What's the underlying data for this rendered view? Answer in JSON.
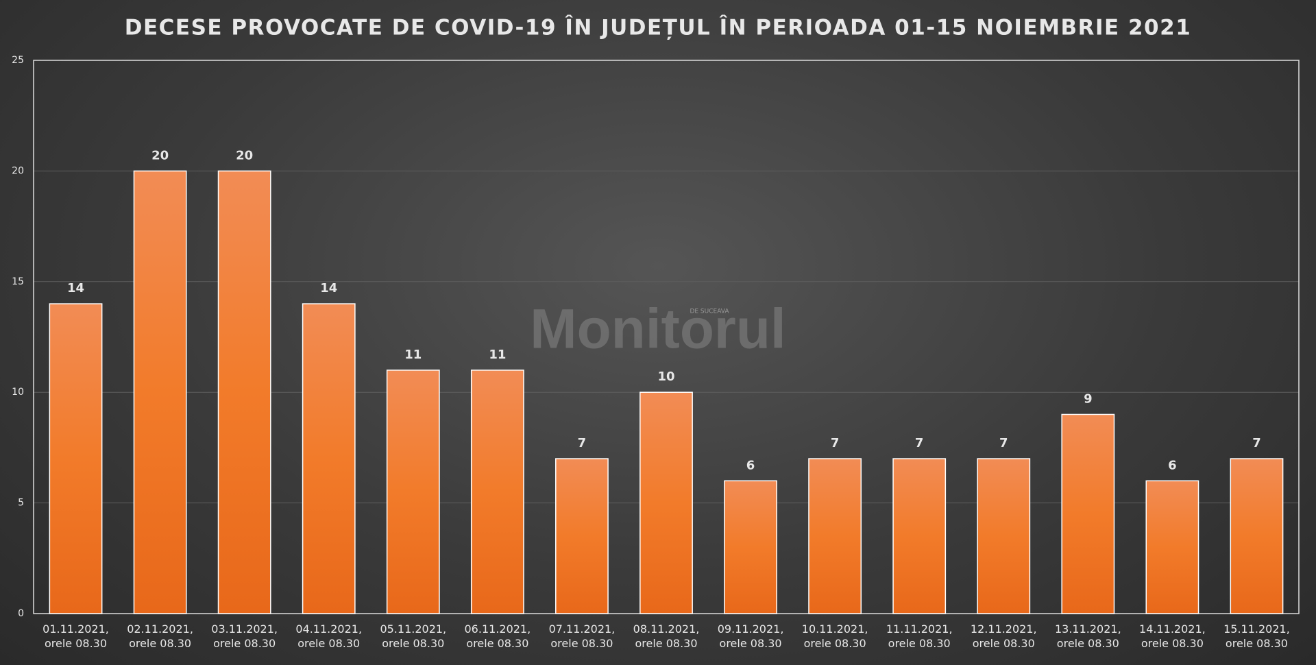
{
  "chart_data": {
    "type": "bar",
    "title": "DECESE PROVOCATE DE COVID-19 ÎN JUDEȚUL ÎN PERIOADA 01-15 NOIEMBRIE 2021",
    "watermark": "Monitorul",
    "watermark_subtitle": "DE SUCEAVA",
    "categories": [
      "01.11.2021, orele 08.30",
      "02.11.2021, orele 08.30",
      "03.11.2021, orele 08.30",
      "04.11.2021, orele 08.30",
      "05.11.2021, orele 08.30",
      "06.11.2021, orele 08.30",
      "07.11.2021, orele 08.30",
      "08.11.2021, orele 08.30",
      "09.11.2021, orele 08.30",
      "10.11.2021, orele 08.30",
      "11.11.2021, orele 08.30",
      "12.11.2021, orele 08.30",
      "13.11.2021, orele 08.30",
      "14.11.2021, orele 08.30",
      "15.11.2021, orele 08.30"
    ],
    "values": [
      14,
      20,
      20,
      14,
      11,
      11,
      7,
      10,
      6,
      7,
      7,
      7,
      9,
      6,
      7
    ],
    "color": "#f07a2a",
    "ylim": [
      0,
      25
    ],
    "yticks": [
      0,
      5,
      10,
      15,
      20,
      25
    ],
    "grid": true
  }
}
